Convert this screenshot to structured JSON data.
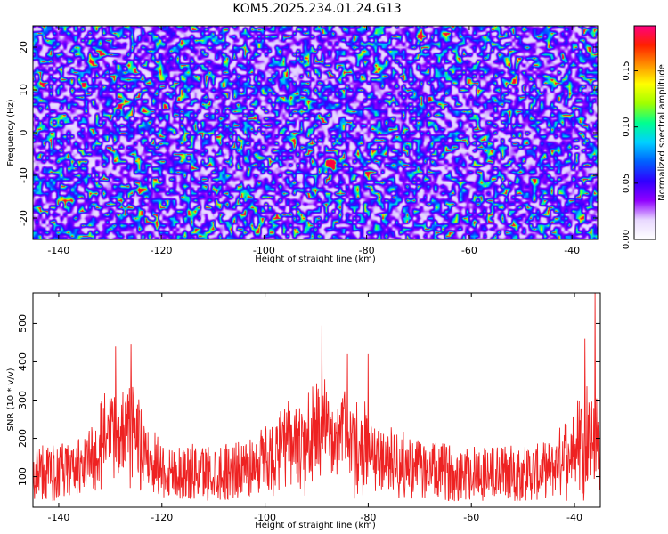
{
  "title": "KOM5.2025.234.01.24.G13",
  "chart_data": [
    {
      "type": "heatmap",
      "xlabel": "Height of straight line (km)",
      "ylabel": "Frequency (Hz)",
      "xlim": [
        -145,
        -35
      ],
      "ylim": [
        -25,
        25
      ],
      "xticks": [
        -140,
        -120,
        -100,
        -80,
        -60,
        -40
      ],
      "yticks": [
        -20,
        -10,
        0,
        10,
        20
      ],
      "colorbar": {
        "label": "Normalized spectral amplitude",
        "range": [
          0,
          0.19
        ],
        "ticks": [
          "0.00",
          "0.05",
          "0.10",
          "0.15"
        ],
        "colors": [
          "#ffffff",
          "#8000ff",
          "#0000ff",
          "#00c8ff",
          "#00ff80",
          "#c8ff00",
          "#ff8000",
          "#ff0000",
          "#ff00aa"
        ]
      },
      "peak": {
        "x": -87,
        "y": -7,
        "value": 0.19
      }
    },
    {
      "type": "line",
      "xlabel": "Height of straight line (km)",
      "ylabel": "SNR (10 * v/v)",
      "xlim": [
        -145,
        -35
      ],
      "ylim": [
        20,
        580
      ],
      "xticks": [
        -140,
        -120,
        -100,
        -80,
        -60,
        -40
      ],
      "yticks": [
        100,
        200,
        300,
        400,
        500
      ],
      "color": "#ee2222",
      "baseline": 110,
      "spikes": [
        {
          "x": -129,
          "value": 440
        },
        {
          "x": -126,
          "value": 445
        },
        {
          "x": -89,
          "value": 495
        },
        {
          "x": -84,
          "value": 420
        },
        {
          "x": -80,
          "value": 420
        },
        {
          "x": -38,
          "value": 460
        },
        {
          "x": -36,
          "value": 580
        }
      ]
    }
  ]
}
